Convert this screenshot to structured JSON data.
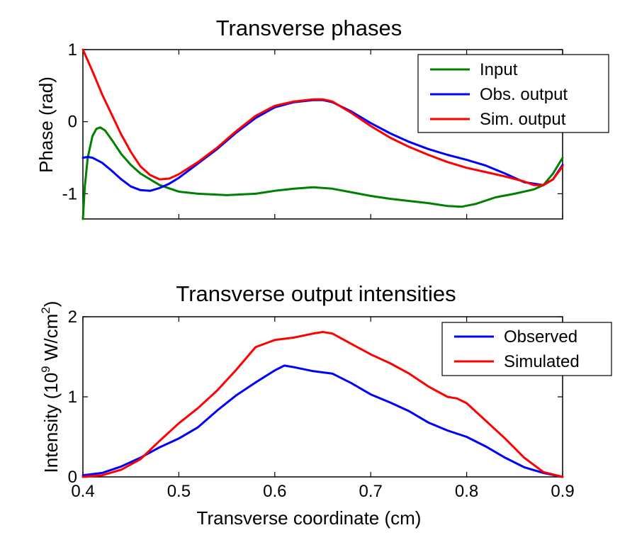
{
  "chart_data": [
    {
      "type": "line",
      "title": "Transverse phases",
      "xlabel": "",
      "ylabel": "Phase (rad)",
      "xlim": [
        0.4,
        0.9
      ],
      "ylim": [
        -1.35,
        1.0
      ],
      "xticks": [
        0.4,
        0.5,
        0.6,
        0.7,
        0.8,
        0.9
      ],
      "yticks": [
        -1,
        0,
        1
      ],
      "ytick_labels": [
        "-1",
        "0",
        "1"
      ],
      "legend_position": "top-right",
      "grid": false,
      "series": [
        {
          "name": "Input",
          "color": "#008000",
          "x": [
            0.4,
            0.402,
            0.405,
            0.41,
            0.414,
            0.418,
            0.423,
            0.43,
            0.44,
            0.45,
            0.46,
            0.48,
            0.5,
            0.52,
            0.55,
            0.58,
            0.6,
            0.62,
            0.64,
            0.66,
            0.68,
            0.7,
            0.72,
            0.74,
            0.76,
            0.78,
            0.795,
            0.81,
            0.83,
            0.85,
            0.87,
            0.88,
            0.89,
            0.9
          ],
          "y": [
            -1.35,
            -0.9,
            -0.5,
            -0.2,
            -0.1,
            -0.08,
            -0.12,
            -0.25,
            -0.45,
            -0.6,
            -0.72,
            -0.88,
            -0.97,
            -1.0,
            -1.02,
            -1.0,
            -0.96,
            -0.93,
            -0.91,
            -0.93,
            -0.98,
            -1.03,
            -1.07,
            -1.1,
            -1.13,
            -1.17,
            -1.18,
            -1.14,
            -1.05,
            -1.0,
            -0.94,
            -0.88,
            -0.72,
            -0.5
          ]
        },
        {
          "name": "Obs. output",
          "color": "#0000ff",
          "x": [
            0.4,
            0.405,
            0.41,
            0.42,
            0.43,
            0.44,
            0.45,
            0.46,
            0.47,
            0.48,
            0.49,
            0.5,
            0.51,
            0.52,
            0.54,
            0.56,
            0.58,
            0.6,
            0.62,
            0.64,
            0.65,
            0.66,
            0.68,
            0.7,
            0.72,
            0.74,
            0.76,
            0.78,
            0.8,
            0.82,
            0.84,
            0.86,
            0.88,
            0.89,
            0.9
          ],
          "y": [
            -0.5,
            -0.49,
            -0.5,
            -0.57,
            -0.68,
            -0.8,
            -0.9,
            -0.95,
            -0.96,
            -0.92,
            -0.86,
            -0.78,
            -0.68,
            -0.58,
            -0.38,
            -0.15,
            0.05,
            0.2,
            0.27,
            0.3,
            0.3,
            0.27,
            0.14,
            -0.02,
            -0.16,
            -0.28,
            -0.38,
            -0.46,
            -0.53,
            -0.61,
            -0.72,
            -0.84,
            -0.88,
            -0.8,
            -0.6
          ]
        },
        {
          "name": "Sim. output",
          "color": "#ff0000",
          "x": [
            0.4,
            0.405,
            0.41,
            0.42,
            0.43,
            0.44,
            0.45,
            0.46,
            0.47,
            0.48,
            0.49,
            0.5,
            0.52,
            0.54,
            0.56,
            0.58,
            0.6,
            0.62,
            0.64,
            0.65,
            0.66,
            0.68,
            0.7,
            0.72,
            0.74,
            0.76,
            0.78,
            0.8,
            0.82,
            0.84,
            0.86,
            0.87,
            0.88,
            0.89,
            0.9
          ],
          "y": [
            1.0,
            0.85,
            0.7,
            0.38,
            0.1,
            -0.18,
            -0.42,
            -0.62,
            -0.74,
            -0.8,
            -0.79,
            -0.73,
            -0.56,
            -0.36,
            -0.13,
            0.08,
            0.22,
            0.28,
            0.31,
            0.31,
            0.28,
            0.12,
            -0.06,
            -0.22,
            -0.35,
            -0.46,
            -0.56,
            -0.64,
            -0.7,
            -0.76,
            -0.83,
            -0.88,
            -0.88,
            -0.8,
            -0.62
          ]
        }
      ]
    },
    {
      "type": "line",
      "title": "Transverse output intensities",
      "xlabel": "Transverse coordinate (cm)",
      "ylabel_parts": {
        "pre": "Intensity (10",
        "exp": "9",
        "mid": " W/cm",
        "exp2": "2",
        "post": ")"
      },
      "xlim": [
        0.4,
        0.9
      ],
      "ylim": [
        0,
        2
      ],
      "xticks": [
        0.4,
        0.5,
        0.6,
        0.7,
        0.8,
        0.9
      ],
      "xtick_labels": [
        "0.4",
        "0.5",
        "0.6",
        "0.7",
        "0.8",
        "0.9"
      ],
      "yticks": [
        0,
        1,
        2
      ],
      "ytick_labels": [
        "0",
        "1",
        "2"
      ],
      "legend_position": "top-right",
      "grid": false,
      "series": [
        {
          "name": "Observed",
          "color": "#0000ff",
          "x": [
            0.4,
            0.42,
            0.44,
            0.46,
            0.48,
            0.5,
            0.52,
            0.54,
            0.56,
            0.58,
            0.6,
            0.61,
            0.62,
            0.64,
            0.66,
            0.68,
            0.7,
            0.72,
            0.74,
            0.76,
            0.78,
            0.8,
            0.82,
            0.84,
            0.86,
            0.88,
            0.9
          ],
          "y": [
            0.02,
            0.05,
            0.13,
            0.24,
            0.37,
            0.48,
            0.62,
            0.83,
            1.02,
            1.18,
            1.33,
            1.39,
            1.37,
            1.32,
            1.29,
            1.17,
            1.03,
            0.93,
            0.82,
            0.68,
            0.58,
            0.5,
            0.38,
            0.24,
            0.12,
            0.05,
            0.0
          ]
        },
        {
          "name": "Simulated",
          "color": "#ff0000",
          "x": [
            0.4,
            0.42,
            0.44,
            0.46,
            0.48,
            0.5,
            0.52,
            0.54,
            0.56,
            0.58,
            0.6,
            0.62,
            0.64,
            0.65,
            0.66,
            0.68,
            0.7,
            0.72,
            0.74,
            0.76,
            0.78,
            0.79,
            0.8,
            0.82,
            0.84,
            0.86,
            0.88,
            0.9
          ],
          "y": [
            0.0,
            0.02,
            0.09,
            0.22,
            0.45,
            0.67,
            0.86,
            1.08,
            1.34,
            1.62,
            1.71,
            1.74,
            1.79,
            1.81,
            1.79,
            1.66,
            1.53,
            1.42,
            1.29,
            1.13,
            1.0,
            0.98,
            0.92,
            0.7,
            0.48,
            0.24,
            0.06,
            0.0
          ]
        }
      ]
    }
  ]
}
